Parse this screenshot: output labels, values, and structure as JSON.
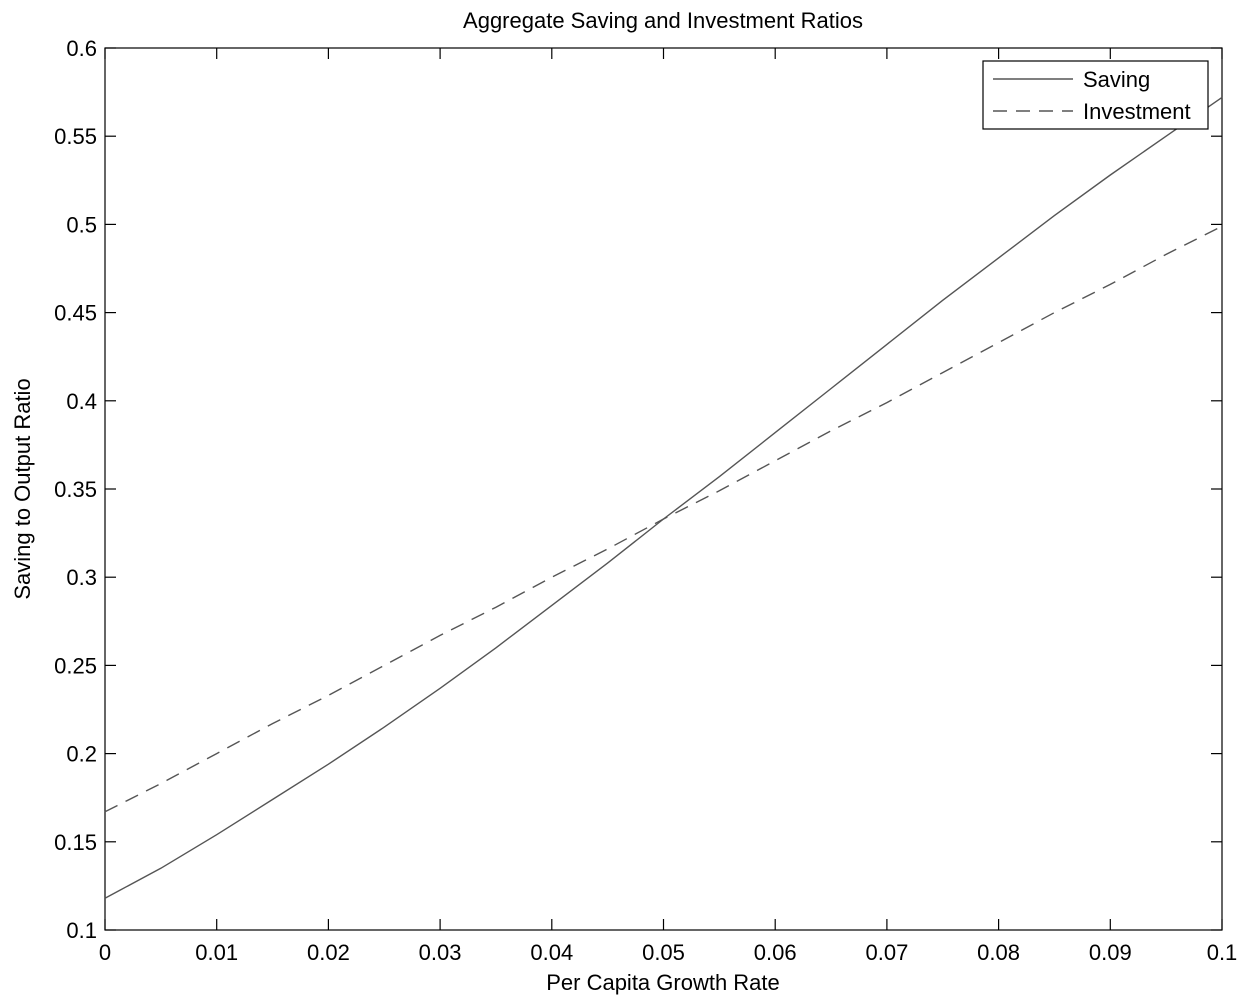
{
  "chart_data": {
    "type": "line",
    "title": "Aggregate Saving and Investment Ratios",
    "xlabel": "Per Capita Growth Rate",
    "ylabel": "Saving to Output Ratio",
    "xlim": [
      0,
      0.1
    ],
    "ylim": [
      0.1,
      0.6
    ],
    "xticks": [
      0,
      0.01,
      0.02,
      0.03,
      0.04,
      0.05,
      0.06,
      0.07,
      0.08,
      0.09,
      0.1
    ],
    "xtick_labels": [
      "0",
      "0.01",
      "0.02",
      "0.03",
      "0.04",
      "0.05",
      "0.06",
      "0.07",
      "0.08",
      "0.09",
      "0.1"
    ],
    "yticks": [
      0.1,
      0.15,
      0.2,
      0.25,
      0.3,
      0.35,
      0.4,
      0.45,
      0.5,
      0.55,
      0.6
    ],
    "ytick_labels": [
      "0.1",
      "0.15",
      "0.2",
      "0.25",
      "0.3",
      "0.35",
      "0.4",
      "0.45",
      "0.5",
      "0.55",
      "0.6"
    ],
    "grid": false,
    "legend_position": "top-right",
    "series": [
      {
        "name": "Saving",
        "style": "solid",
        "color": "#555555",
        "x": [
          0,
          0.005,
          0.01,
          0.015,
          0.02,
          0.025,
          0.03,
          0.035,
          0.04,
          0.045,
          0.05,
          0.055,
          0.06,
          0.065,
          0.07,
          0.075,
          0.08,
          0.085,
          0.09,
          0.095,
          0.1
        ],
        "y": [
          0.118,
          0.135,
          0.154,
          0.174,
          0.194,
          0.215,
          0.237,
          0.26,
          0.284,
          0.308,
          0.333,
          0.357,
          0.382,
          0.407,
          0.432,
          0.457,
          0.481,
          0.505,
          0.528,
          0.55,
          0.572
        ]
      },
      {
        "name": "Investment",
        "style": "dashed",
        "color": "#555555",
        "x": [
          0,
          0.005,
          0.01,
          0.015,
          0.02,
          0.025,
          0.03,
          0.035,
          0.04,
          0.045,
          0.05,
          0.055,
          0.06,
          0.065,
          0.07,
          0.075,
          0.08,
          0.085,
          0.09,
          0.095,
          0.1
        ],
        "y": [
          0.167,
          0.183,
          0.2,
          0.217,
          0.233,
          0.25,
          0.267,
          0.283,
          0.3,
          0.316,
          0.333,
          0.349,
          0.366,
          0.383,
          0.399,
          0.416,
          0.433,
          0.45,
          0.466,
          0.483,
          0.499
        ]
      }
    ]
  }
}
